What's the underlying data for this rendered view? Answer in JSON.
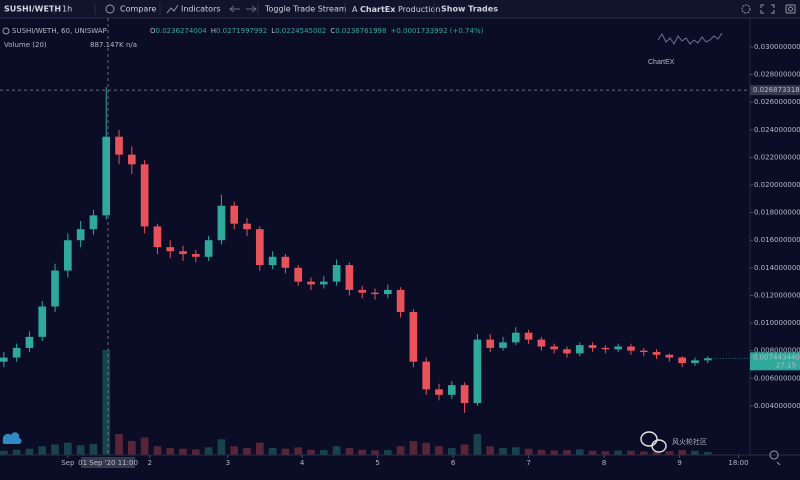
{
  "chart_data": {
    "type": "candlestick",
    "toolbar": {
      "symbol": "SUSHI/WETH",
      "interval": "1h",
      "compare": "Compare",
      "indicators": "Indicators",
      "toggle": "Toggle Trade Stream",
      "production_prefix": "A",
      "production_brand": "ChartEx",
      "production_suffix": "Production",
      "show_trades": "Show Trades"
    },
    "title": "SUSHI/WETH, 60, UNISWAP",
    "ohlc_legend": [
      {
        "label": "O",
        "value": "0.0236274004"
      },
      {
        "label": "H",
        "value": "0.0271997992"
      },
      {
        "label": "L",
        "value": "0.0224545002"
      },
      {
        "label": "C",
        "value": "0.0236761998"
      }
    ],
    "change": "+0.0001733992 (+0.74%)",
    "volume_title": "Volume (20)",
    "volume_legend": "887.147K",
    "volume_ma": "n/a",
    "logo": "ChartEX",
    "watermark": "风火轮社区",
    "countdown": "27:15",
    "colors": {
      "up": "#2fa99b",
      "down": "#e8525a"
    },
    "open": [
      0.0072,
      0.0075,
      0.0082,
      0.009,
      0.0112,
      0.0138,
      0.016,
      0.0168,
      0.0178,
      0.0235,
      0.0222,
      0.0215,
      0.017,
      0.0155,
      0.0152,
      0.015,
      0.0148,
      0.016,
      0.0185,
      0.0172,
      0.0168,
      0.0142,
      0.0148,
      0.014,
      0.013,
      0.0128,
      0.013,
      0.0142,
      0.0124,
      0.0122,
      0.0121,
      0.0124,
      0.0108,
      0.0072,
      0.0052,
      0.0048,
      0.0055,
      0.0042,
      0.0088,
      0.0082,
      0.0086,
      0.0093,
      0.0088,
      0.0083,
      0.0081,
      0.0078,
      0.0084,
      0.0082,
      0.0081,
      0.0083,
      0.008,
      0.0079,
      0.0077,
      0.0075,
      0.0071,
      0.0073
    ],
    "high": [
      0.0079,
      0.0085,
      0.0094,
      0.0116,
      0.0143,
      0.0165,
      0.0174,
      0.0182,
      0.0271,
      0.024,
      0.0228,
      0.0218,
      0.0172,
      0.016,
      0.0156,
      0.0153,
      0.0163,
      0.0193,
      0.0188,
      0.0176,
      0.017,
      0.0152,
      0.015,
      0.0142,
      0.0133,
      0.0134,
      0.0146,
      0.0144,
      0.0127,
      0.0125,
      0.0128,
      0.0126,
      0.011,
      0.0075,
      0.0056,
      0.0058,
      0.0057,
      0.0092,
      0.0092,
      0.009,
      0.0097,
      0.0095,
      0.009,
      0.0085,
      0.0083,
      0.0086,
      0.0086,
      0.0084,
      0.0085,
      0.0085,
      0.0082,
      0.0081,
      0.0078,
      0.0076,
      0.0075,
      0.0076
    ],
    "low": [
      0.0068,
      0.0072,
      0.0079,
      0.0087,
      0.0108,
      0.0133,
      0.0155,
      0.0164,
      0.0175,
      0.0215,
      0.0208,
      0.0165,
      0.015,
      0.0147,
      0.0145,
      0.0144,
      0.0145,
      0.0157,
      0.0168,
      0.0163,
      0.0138,
      0.0139,
      0.0136,
      0.0127,
      0.0124,
      0.0125,
      0.0127,
      0.012,
      0.0118,
      0.0117,
      0.0118,
      0.0104,
      0.0068,
      0.0048,
      0.0044,
      0.0045,
      0.0035,
      0.004,
      0.0079,
      0.008,
      0.0084,
      0.0085,
      0.008,
      0.0078,
      0.0075,
      0.0076,
      0.0079,
      0.0078,
      0.0079,
      0.0077,
      0.0076,
      0.0074,
      0.0072,
      0.0068,
      0.0069,
      0.0071
    ],
    "close": [
      0.0075,
      0.0082,
      0.009,
      0.0112,
      0.0138,
      0.016,
      0.0168,
      0.0178,
      0.0235,
      0.0222,
      0.0215,
      0.017,
      0.0155,
      0.0152,
      0.015,
      0.0148,
      0.016,
      0.0185,
      0.0172,
      0.0168,
      0.0142,
      0.0148,
      0.014,
      0.013,
      0.0128,
      0.013,
      0.0142,
      0.0124,
      0.0122,
      0.0121,
      0.0124,
      0.0108,
      0.0072,
      0.0052,
      0.0048,
      0.0055,
      0.0042,
      0.0088,
      0.0082,
      0.0086,
      0.0093,
      0.0088,
      0.0083,
      0.0081,
      0.0078,
      0.0084,
      0.0082,
      0.0081,
      0.0083,
      0.008,
      0.0079,
      0.0077,
      0.0075,
      0.0071,
      0.0073,
      0.0074434401
    ],
    "volume": [
      1200000,
      1500000,
      1800000,
      2500000,
      3000000,
      3500000,
      2800000,
      3200000,
      30000000,
      6000000,
      4000000,
      5000000,
      2500000,
      2000000,
      1800000,
      1600000,
      2200000,
      4500000,
      2500000,
      2000000,
      3500000,
      2000000,
      1800000,
      2200000,
      1500000,
      1400000,
      2500000,
      2000000,
      1500000,
      1300000,
      1400000,
      2500000,
      4000000,
      3500000,
      2500000,
      2000000,
      3000000,
      6000000,
      2500000,
      2000000,
      2200000,
      1800000,
      1500000,
      1300000,
      1400000,
      1600000,
      1200000,
      1100000,
      1300000,
      1200000,
      1000000,
      1000000,
      1100000,
      1400000,
      1200000,
      887147
    ],
    "xlim": [
      -0.3,
      58.3
    ],
    "xticks": [
      {
        "value": 5.0,
        "label": "Sep"
      },
      {
        "value": 11.4,
        "label": "2"
      },
      {
        "value": 17.5,
        "label": "3"
      },
      {
        "value": 23.3,
        "label": "4"
      },
      {
        "value": 29.2,
        "label": "5"
      },
      {
        "value": 35.1,
        "label": "6"
      },
      {
        "value": 41.0,
        "label": "7"
      },
      {
        "value": 46.9,
        "label": "8"
      },
      {
        "value": 52.8,
        "label": "9"
      },
      {
        "value": 57.4,
        "label": "18:00"
      }
    ],
    "ylim": [
      0.00044,
      0.0321
    ],
    "yticks": [
      {
        "value": 0.03,
        "label": "0.0300000000"
      },
      {
        "value": 0.028,
        "label": "0.0280000000"
      },
      {
        "value": 0.026,
        "label": "0.0260000000"
      },
      {
        "value": 0.024,
        "label": "0.0240000000"
      },
      {
        "value": 0.022,
        "label": "0.0220000000"
      },
      {
        "value": 0.02,
        "label": "0.0200000000"
      },
      {
        "value": 0.018,
        "label": "0.0180000000"
      },
      {
        "value": 0.016,
        "label": "0.0160000000"
      },
      {
        "value": 0.014,
        "label": "0.0140000000"
      },
      {
        "value": 0.012,
        "label": "0.0120000000"
      },
      {
        "value": 0.01,
        "label": "0.0100000000"
      },
      {
        "value": 0.008,
        "label": "0.0080000000"
      },
      {
        "value": 0.006,
        "label": "0.0060000000"
      },
      {
        "value": 0.004,
        "label": "0.0040000000"
      }
    ],
    "crosshair": {
      "price": 0.0268733189,
      "time": {
        "value": 8.14,
        "label": "01 Sep '20 11:00"
      }
    }
  }
}
